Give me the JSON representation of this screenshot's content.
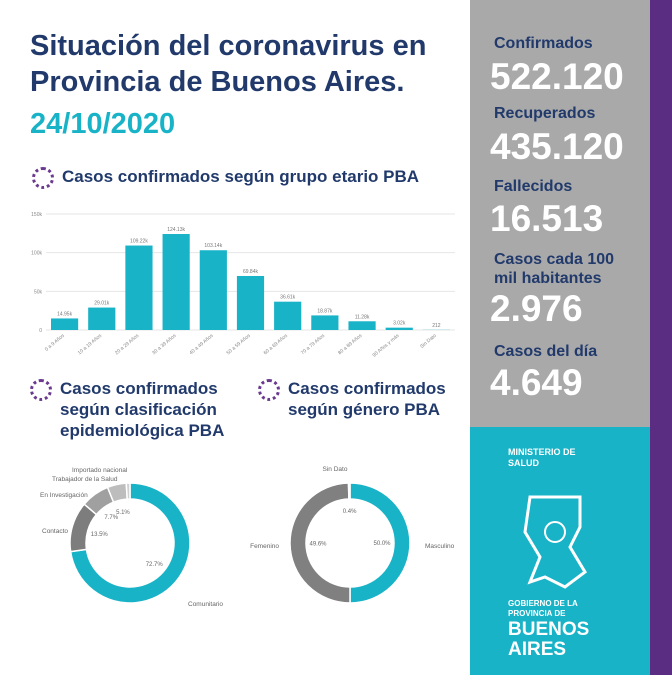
{
  "header": {
    "title_line1": "Situación del coronavirus en",
    "title_line2": "Provincia de Buenos Aires.",
    "date": "24/10/2020"
  },
  "sections": {
    "age": "Casos confirmados según grupo etario PBA",
    "epi": "Casos confirmados según clasificación epidemiológica PBA",
    "gender": "Casos confirmados según género PBA"
  },
  "stats": [
    {
      "label": "Confirmados",
      "value": "522.120"
    },
    {
      "label": "Recuperados",
      "value": "435.120"
    },
    {
      "label": "Fallecidos",
      "value": "16.513"
    },
    {
      "label": "Casos cada 100 mil habitantes",
      "value": "2.976"
    },
    {
      "label": "Casos del día",
      "value": "4.649"
    }
  ],
  "footer": {
    "ministry": "MINISTERIO DE SALUD",
    "gov1": "GOBIERNO DE LA",
    "gov2": "PROVINCIA DE",
    "gov3": "BUENOS",
    "gov4": "AIRES"
  },
  "colors": {
    "teal": "#19b3c8",
    "navy": "#213a6b",
    "purple": "#5a2d82",
    "grey": "#a9a9aa"
  },
  "chart_data": [
    {
      "type": "bar",
      "title": "Casos confirmados según grupo etario PBA",
      "categories": [
        "0 a 9 Años",
        "10 a 19 Años",
        "20 a 29 Años",
        "30 a 39 Años",
        "40 a 49 Años",
        "50 a 59 Años",
        "60 a 69 Años",
        "70 a 79 Años",
        "80 a 89 Años",
        "90 Años y más",
        "Sin Dato"
      ],
      "values": [
        14950,
        29010,
        109220,
        124130,
        103140,
        69840,
        36610,
        18870,
        11280,
        3020,
        212
      ],
      "labels": [
        "14.95k",
        "29.01k",
        "109.22k",
        "124.13k",
        "103.14k",
        "69.84k",
        "36.61k",
        "18.87k",
        "11.28k",
        "3.02k",
        "212"
      ],
      "yticks": [
        "0",
        "50k",
        "100k",
        "150k"
      ],
      "ylim": [
        0,
        150000
      ]
    },
    {
      "type": "pie",
      "title": "Casos confirmados según clasificación epidemiológica PBA",
      "categories": [
        "Comunitario",
        "Contacto",
        "En Investigación",
        "Trabajador de la Salud",
        "Importado nacional"
      ],
      "values": [
        72.7,
        13.5,
        7.7,
        5.1,
        1.0
      ],
      "labels": [
        "72.7%",
        "13.5%",
        "7.7%",
        "5.1%",
        ""
      ]
    },
    {
      "type": "pie",
      "title": "Casos confirmados según género PBA",
      "categories": [
        "Masculino",
        "Femenino",
        "Sin Dato"
      ],
      "values": [
        50.0,
        49.6,
        0.4
      ],
      "labels": [
        "50.0%",
        "49.6%",
        "0.4%"
      ]
    }
  ]
}
